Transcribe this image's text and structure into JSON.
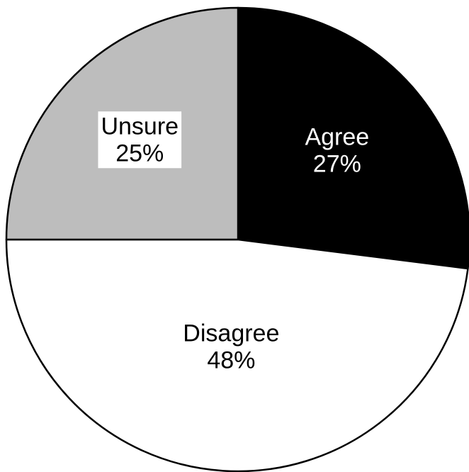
{
  "chart_data": {
    "type": "pie",
    "categories": [
      "Agree",
      "Disagree",
      "Unsure"
    ],
    "values": [
      27,
      48,
      25
    ],
    "value_labels": [
      "27%",
      "48%",
      "25%"
    ],
    "colors": [
      "#000000",
      "#ffffff",
      "#bdbdbd"
    ]
  }
}
